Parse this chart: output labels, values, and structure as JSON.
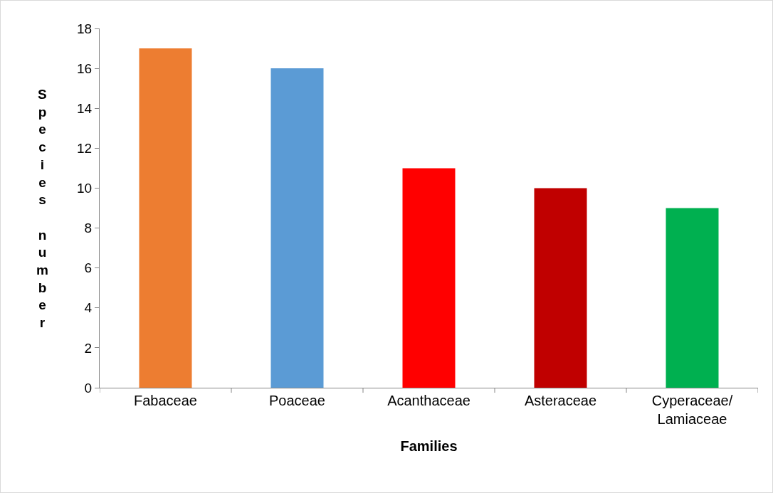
{
  "chart_data": {
    "type": "bar",
    "categories": [
      "Fabaceae",
      "Poaceae",
      "Acanthaceae",
      "Asteraceae",
      "Cyperaceae/ Lamiaceae"
    ],
    "values": [
      17,
      16,
      11,
      10,
      9
    ],
    "colors": [
      "#ed7d31",
      "#5b9bd5",
      "#ff0000",
      "#c00000",
      "#00b050"
    ],
    "xlabel": "Families",
    "ylabel": "Species number",
    "ylim": [
      0,
      18
    ],
    "yticks": [
      0,
      2,
      4,
      6,
      8,
      10,
      12,
      14,
      16,
      18
    ],
    "grid": false
  }
}
